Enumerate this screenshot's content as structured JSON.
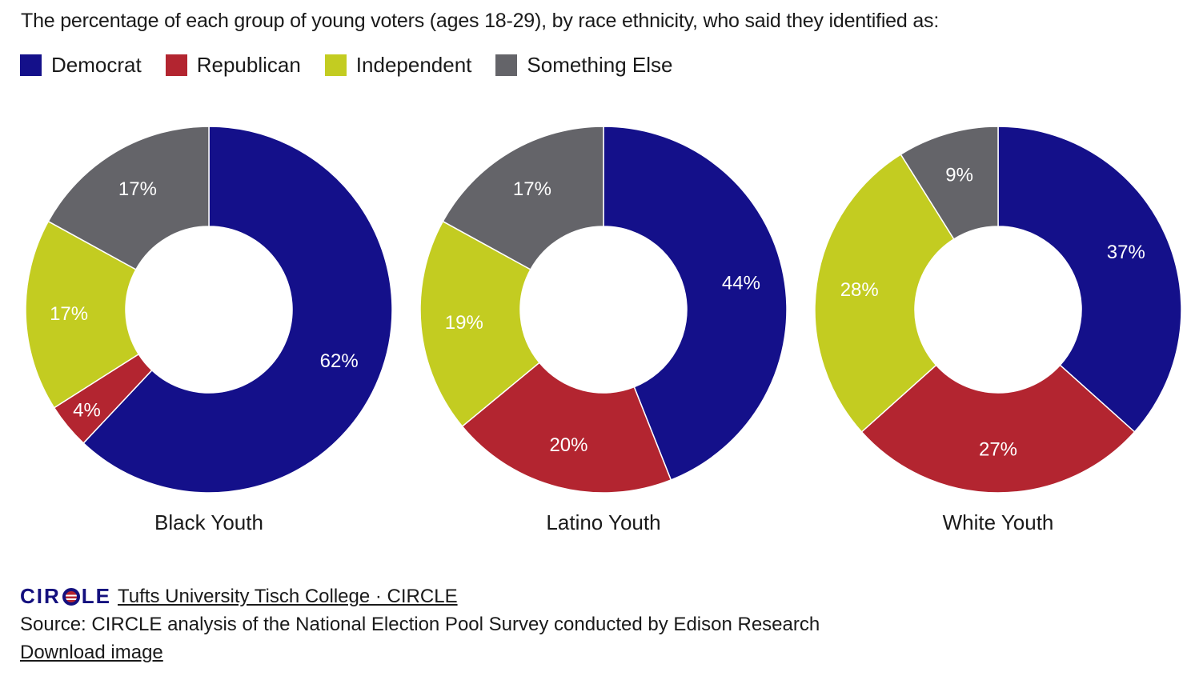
{
  "title": "The percentage of each group of young voters (ages 18-29), by race ethnicity, who said they identified as:",
  "legend": [
    {
      "label": "Democrat",
      "color": "#14108a"
    },
    {
      "label": "Republican",
      "color": "#b32530"
    },
    {
      "label": "Independent",
      "color": "#c3cc21"
    },
    {
      "label": "Something Else",
      "color": "#646469"
    }
  ],
  "chart_data": [
    {
      "type": "pie",
      "title": "Black Youth",
      "categories": [
        "Democrat",
        "Republican",
        "Independent",
        "Something Else"
      ],
      "values": [
        62,
        4,
        17,
        17
      ],
      "labels": [
        "62%",
        "4%",
        "17%",
        "17%"
      ]
    },
    {
      "type": "pie",
      "title": "Latino Youth",
      "categories": [
        "Democrat",
        "Republican",
        "Independent",
        "Something Else"
      ],
      "values": [
        44,
        20,
        19,
        17
      ],
      "labels": [
        "44%",
        "20%",
        "19%",
        "17%"
      ]
    },
    {
      "type": "pie",
      "title": "White Youth",
      "categories": [
        "Democrat",
        "Republican",
        "Independent",
        "Something Else"
      ],
      "values": [
        37,
        27,
        28,
        9
      ],
      "labels": [
        "37%",
        "27%",
        "28%",
        "9%"
      ]
    }
  ],
  "footer": {
    "logo_text_left": "CIR",
    "logo_text_right": "LE",
    "org_link": "Tufts University Tisch College · CIRCLE",
    "source": "Source: CIRCLE analysis of the National Election Pool Survey conducted by Edison Research",
    "download": "Download image"
  }
}
